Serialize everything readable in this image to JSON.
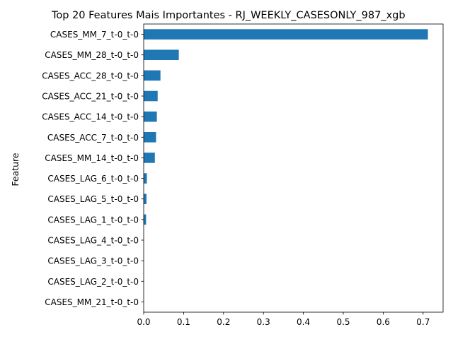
{
  "chart_data": {
    "type": "bar",
    "orientation": "horizontal",
    "title": "Top 20 Features Mais Importantes - RJ_WEEKLY_CASESONLY_987_xgb",
    "xlabel": "",
    "ylabel": "Feature",
    "categories": [
      "CASES_MM_7_t-0_t-0",
      "CASES_MM_28_t-0_t-0",
      "CASES_ACC_28_t-0_t-0",
      "CASES_ACC_21_t-0_t-0",
      "CASES_ACC_14_t-0_t-0",
      "CASES_ACC_7_t-0_t-0",
      "CASES_MM_14_t-0_t-0",
      "CASES_LAG_6_t-0_t-0",
      "CASES_LAG_5_t-0_t-0",
      "CASES_LAG_1_t-0_t-0",
      "CASES_LAG_4_t-0_t-0",
      "CASES_LAG_3_t-0_t-0",
      "CASES_LAG_2_t-0_t-0",
      "CASES_MM_21_t-0_t-0"
    ],
    "values": [
      0.712,
      0.088,
      0.042,
      0.035,
      0.033,
      0.031,
      0.028,
      0.008,
      0.007,
      0.006,
      0.0,
      0.0,
      0.0,
      0.0
    ],
    "xlim": [
      0.0,
      0.75
    ],
    "xticks": [
      "0.0",
      "0.1",
      "0.2",
      "0.3",
      "0.4",
      "0.5",
      "0.6",
      "0.7"
    ],
    "grid": false,
    "legend": false,
    "bar_color": "#1f77b4"
  }
}
